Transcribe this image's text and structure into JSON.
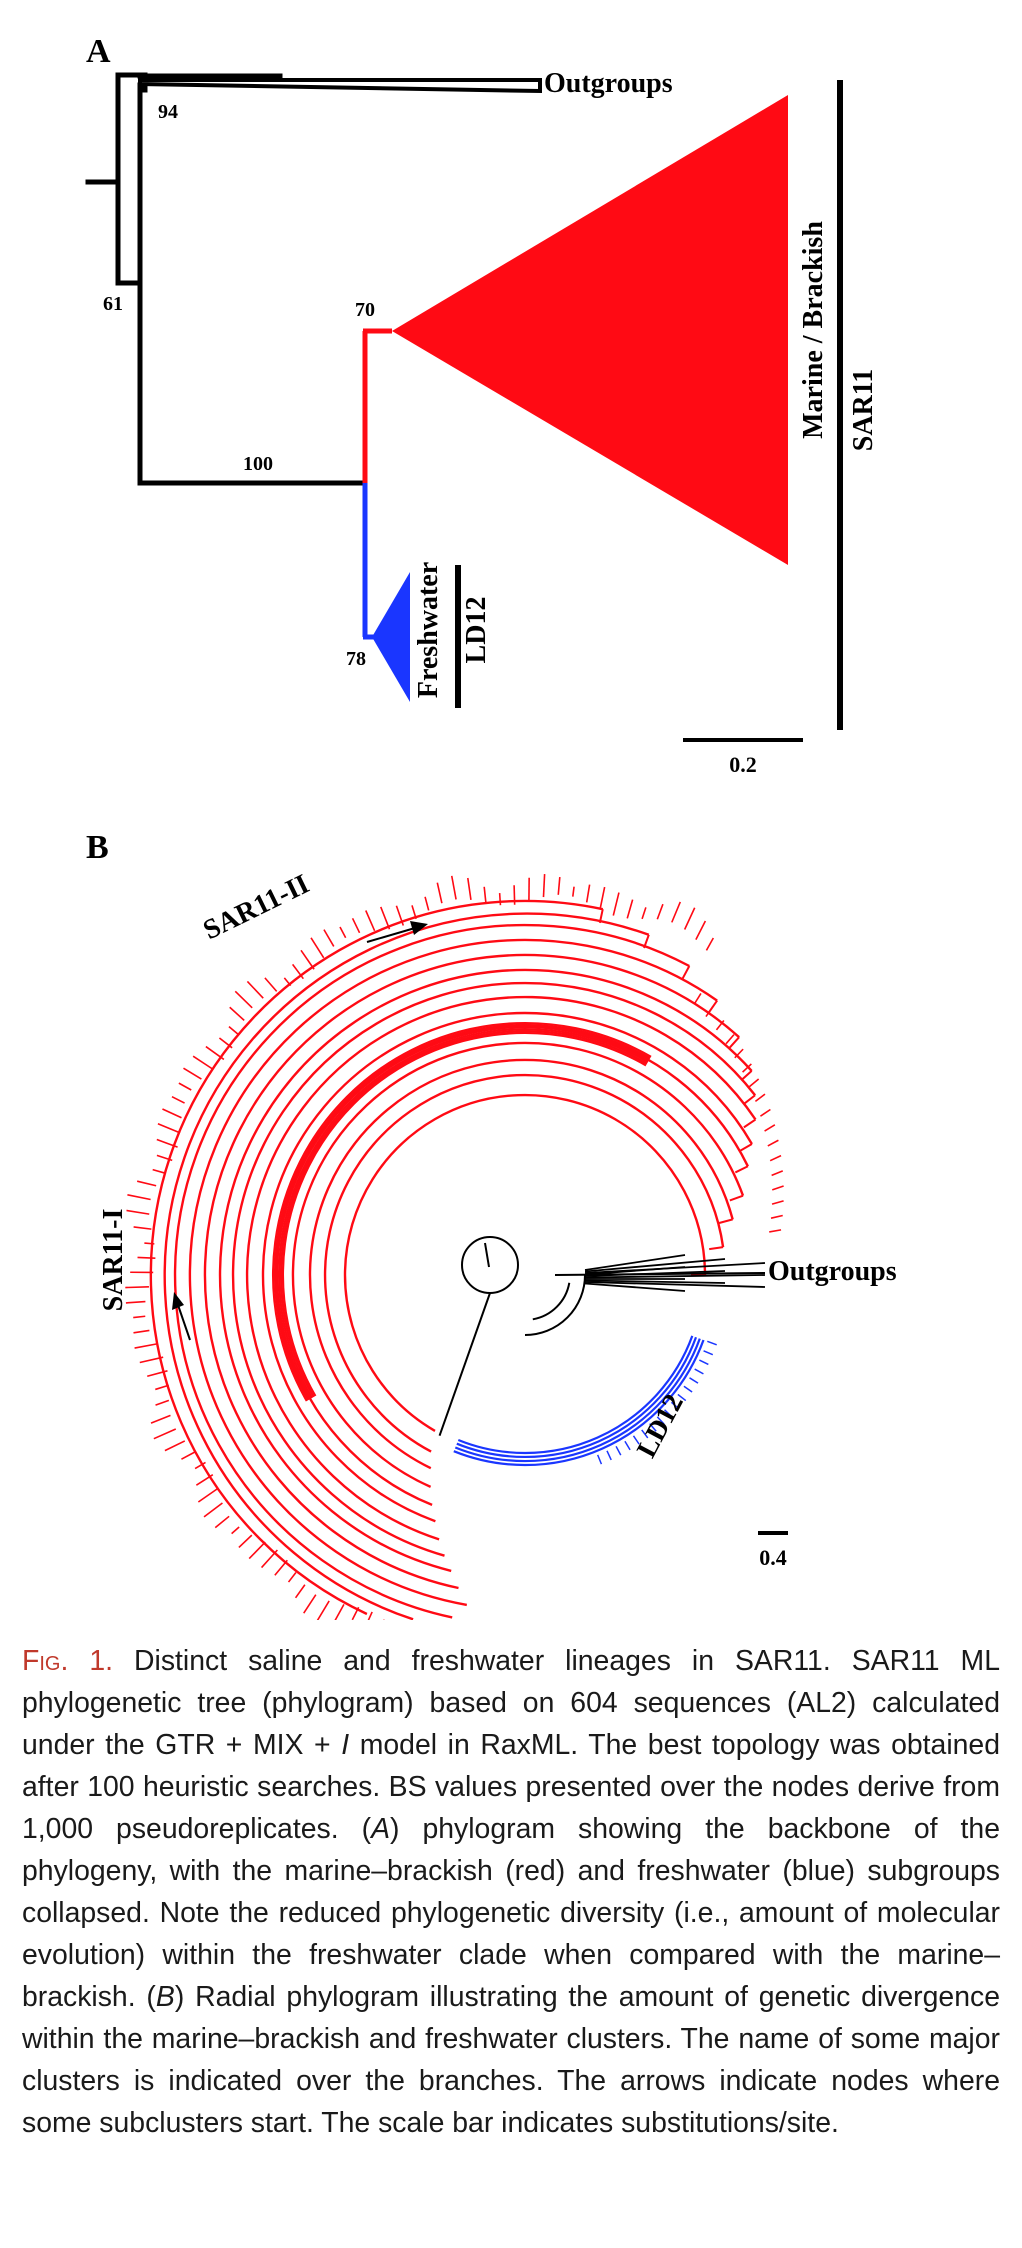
{
  "panel_a": {
    "letter": "A",
    "labels": {
      "outgroups": "Outgroups",
      "marine": "Marine / Brackish",
      "sar11": "SAR11",
      "freshwater": "Freshwater",
      "ld12": "LD12"
    },
    "bootstrap": [
      "94",
      "61",
      "70",
      "100",
      "78"
    ],
    "scale": "0.2"
  },
  "panel_b": {
    "letter": "B",
    "labels": {
      "sar11_ii": "SAR11-II",
      "sar11_i": "SAR11-I",
      "outgroups": "Outgroups",
      "ld12": "LD12"
    },
    "scale": "0.4"
  },
  "colors": {
    "marine": "#ff0a14",
    "freshwater": "#1a36ff",
    "backbone": "#000000",
    "caption_label": "#c0392b"
  },
  "caption": {
    "label": "Fig. 1.",
    "segments": [
      " Distinct saline and freshwater lineages in SAR11. SAR11 ML phylogenetic tree (phylogram) based on 604 sequences (AL2) calculated under the GTR + MIX + ",
      "I",
      " model in RaxML. The best topology was obtained after 100 heuristic searches. BS values presented over the nodes derive from 1,000 pseudoreplicates. (",
      "A",
      ") phylogram showing the backbone of the phylogeny, with the marine–brackish (red) and freshwater (blue) subgroups collapsed. Note the reduced phylogenetic diversity (i.e., amount of molecular evolution) within the freshwater clade when compared with the marine–brackish. (",
      "B",
      ") Radial phylogram illustrating the amount of genetic divergence within the marine–brackish and freshwater clusters. The name of some major clusters is indicated over the branches. The arrows indicate nodes where some subclusters start. The scale bar indicates substitutions/site."
    ]
  }
}
